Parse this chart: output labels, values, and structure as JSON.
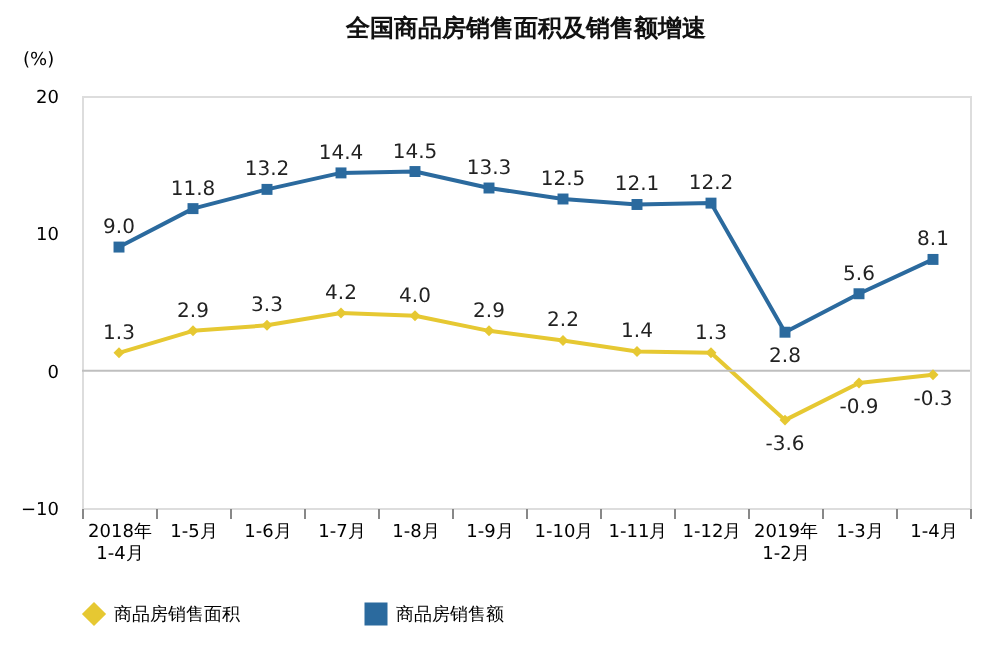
{
  "chart_data": {
    "type": "line",
    "title": "全国商品房销售面积及销售额增速",
    "ylabel": "(%)",
    "categories": [
      "2018年\n1-4月",
      "1-5月",
      "1-6月",
      "1-7月",
      "1-8月",
      "1-9月",
      "1-10月",
      "1-11月",
      "1-12月",
      "2019年\n1-2月",
      "1-3月",
      "1-4月"
    ],
    "series": [
      {
        "name": "商品房销售面积",
        "color": "#e6c832",
        "marker": "diamond",
        "values": [
          1.3,
          2.9,
          3.3,
          4.2,
          4.0,
          2.9,
          2.2,
          1.4,
          1.3,
          -3.6,
          -0.9,
          -0.3
        ],
        "value_labels": [
          "1.3",
          "2.9",
          "3.3",
          "4.2",
          "4.0",
          "2.9",
          "2.2",
          "1.4",
          "1.3",
          "-3.6",
          "-0.9",
          "-0.3"
        ]
      },
      {
        "name": "商品房销售额",
        "color": "#2b6a9e",
        "marker": "square",
        "values": [
          9.0,
          11.8,
          13.2,
          14.4,
          14.5,
          13.3,
          12.5,
          12.1,
          12.2,
          2.8,
          5.6,
          8.1
        ],
        "value_labels": [
          "9.0",
          "11.8",
          "13.2",
          "14.4",
          "14.5",
          "13.3",
          "12.5",
          "12.1",
          "12.2",
          "2.8",
          "5.6",
          "8.1"
        ]
      }
    ],
    "ylim": [
      -10,
      20
    ],
    "yticks": [
      -10,
      0,
      10,
      20
    ],
    "grid": false,
    "legend": "bottom",
    "line_style": "solid",
    "ref_lines": [
      {
        "axis": "y",
        "value": 0,
        "label": null,
        "color": "#bfbfbf"
      }
    ]
  }
}
